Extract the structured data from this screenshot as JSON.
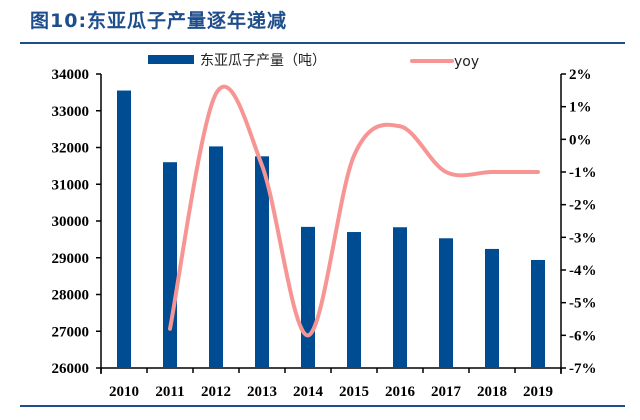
{
  "title": "图10:东亚瓜子产量逐年递减",
  "chart_data": {
    "type": "bar+line",
    "categories": [
      "2010",
      "2011",
      "2012",
      "2013",
      "2014",
      "2015",
      "2016",
      "2017",
      "2018",
      "2019"
    ],
    "series": [
      {
        "name": "东亚瓜子产量（吨）",
        "type": "bar",
        "axis": "left",
        "color": "#004c93",
        "values": [
          33550,
          31600,
          32030,
          31760,
          29840,
          29700,
          29830,
          29530,
          29240,
          28940
        ]
      },
      {
        "name": "yoy",
        "type": "line",
        "axis": "right",
        "color": "#f79595",
        "smooth": true,
        "values": [
          null,
          -5.8,
          1.4,
          -0.8,
          -6.0,
          -0.5,
          0.4,
          -1.0,
          -1.0,
          -1.0
        ]
      }
    ],
    "left_axis": {
      "range": [
        26000,
        34000
      ],
      "ticks": [
        "26000",
        "27000",
        "28000",
        "29000",
        "30000",
        "31000",
        "32000",
        "33000",
        "34000"
      ]
    },
    "right_axis": {
      "range": [
        -7,
        2
      ],
      "ticks": [
        "-7%",
        "-6%",
        "-5%",
        "-4%",
        "-3%",
        "-2%",
        "-1%",
        "0%",
        "1%",
        "2%"
      ]
    },
    "grid": false,
    "legend": "top"
  }
}
